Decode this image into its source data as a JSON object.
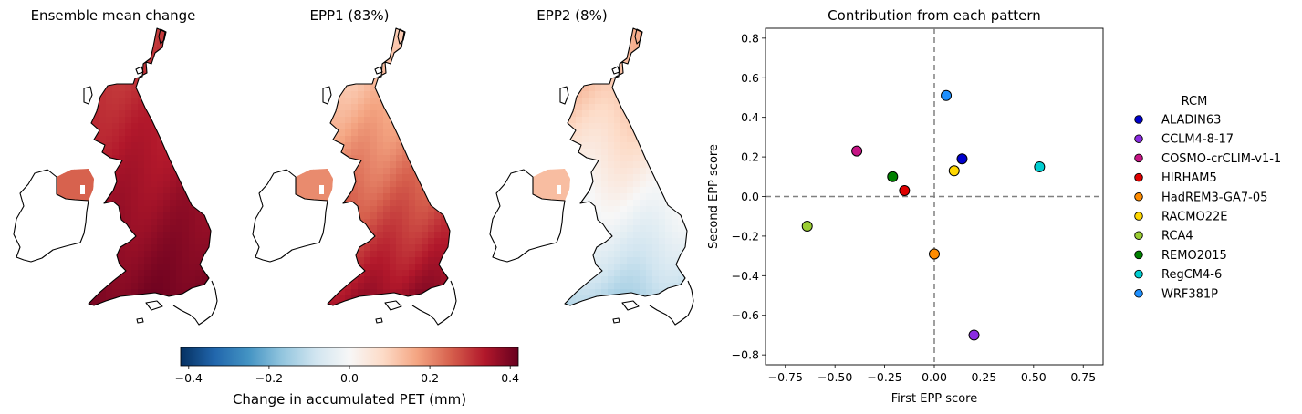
{
  "maps": [
    {
      "title": "Ensemble mean change",
      "style": "mean"
    },
    {
      "title": "EPP1 (83%)",
      "style": "epp1"
    },
    {
      "title": "EPP2 (8%)",
      "style": "epp2"
    }
  ],
  "colorbar": {
    "label": "Change in accumulated PET (mm)",
    "min": -0.42,
    "max": 0.42,
    "ticks": [
      -0.4,
      -0.2,
      0.0,
      0.2,
      0.4
    ],
    "tick_labels": [
      "−0.4",
      "−0.2",
      "0.0",
      "0.2",
      "0.4"
    ],
    "colors": [
      "#053061",
      "#2166ac",
      "#4393c3",
      "#92c5de",
      "#d1e5f0",
      "#f7f7f7",
      "#fddbc7",
      "#f4a582",
      "#d6604d",
      "#b2182b",
      "#67001f"
    ]
  },
  "chart_data": {
    "type": "scatter",
    "title": "Contribution from each pattern",
    "xlabel": "First EPP score",
    "ylabel": "Second EPP score",
    "xlim": [
      -0.85,
      0.85
    ],
    "ylim": [
      -0.85,
      0.85
    ],
    "x_ticks": [
      -0.75,
      -0.5,
      -0.25,
      0.0,
      0.25,
      0.5,
      0.75
    ],
    "x_tick_labels": [
      "−0.75",
      "−0.50",
      "−0.25",
      "0.00",
      "0.25",
      "0.50",
      "0.75"
    ],
    "y_ticks": [
      -0.8,
      -0.6,
      -0.4,
      -0.2,
      0.0,
      0.2,
      0.4,
      0.6,
      0.8
    ],
    "y_tick_labels": [
      "−0.8",
      "−0.6",
      "−0.4",
      "−0.2",
      "0.0",
      "0.2",
      "0.4",
      "0.6",
      "0.8"
    ],
    "reference_lines": {
      "x": 0.0,
      "y": 0.0,
      "style": "dashed",
      "color": "#808080"
    },
    "legend": {
      "title": "RCM",
      "placement": "right, outside plot"
    },
    "series": [
      {
        "name": "ALADIN63",
        "color": "#0000cd",
        "x": 0.14,
        "y": 0.19
      },
      {
        "name": "CCLM4-8-17",
        "color": "#8a2be2",
        "x": 0.2,
        "y": -0.7
      },
      {
        "name": "COSMO-crCLIM-v1-1",
        "color": "#c71585",
        "x": -0.39,
        "y": 0.23
      },
      {
        "name": "HIRHAM5",
        "color": "#e00000",
        "x": -0.15,
        "y": 0.03
      },
      {
        "name": "HadREM3-GA7-05",
        "color": "#ff8c00",
        "x": 0.0,
        "y": -0.29
      },
      {
        "name": "RACMO22E",
        "color": "#ffd700",
        "x": 0.1,
        "y": 0.13
      },
      {
        "name": "RCA4",
        "color": "#9acd32",
        "x": -0.64,
        "y": -0.15
      },
      {
        "name": "REMO2015",
        "color": "#008000",
        "x": -0.21,
        "y": 0.1
      },
      {
        "name": "RegCM4-6",
        "color": "#00ced1",
        "x": 0.53,
        "y": 0.15
      },
      {
        "name": "WRF381P",
        "color": "#1e90ff",
        "x": 0.06,
        "y": 0.51
      }
    ]
  }
}
